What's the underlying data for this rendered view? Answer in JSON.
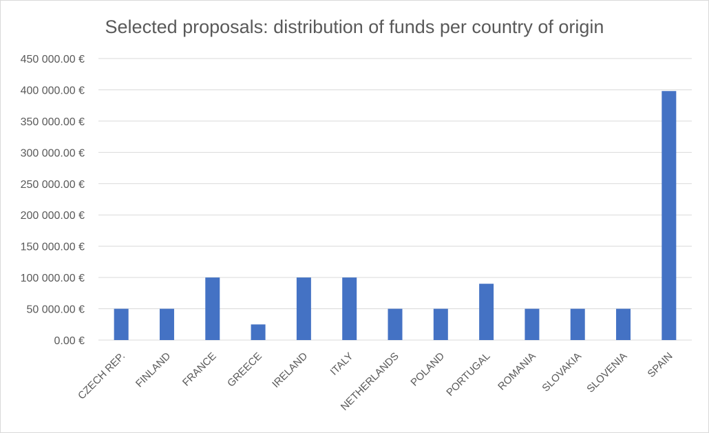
{
  "chart_data": {
    "type": "bar",
    "title": "Selected proposals: distribution of funds per country of origin",
    "xlabel": "",
    "ylabel": "",
    "categories": [
      "CZECH REP.",
      "FINLAND",
      "FRANCE",
      "GREECE",
      "IRELAND",
      "ITALY",
      "NETHERLANDS",
      "POLAND",
      "PORTUGAL",
      "ROMANIA",
      "SLOVAKIA",
      "SLOVENIA",
      "SPAIN"
    ],
    "values": [
      50000,
      50000,
      100000,
      25000,
      100000,
      100000,
      50000,
      50000,
      90000,
      50000,
      50000,
      50000,
      398000
    ],
    "ylim": [
      0,
      450000
    ],
    "yticks": [
      0,
      50000,
      100000,
      150000,
      200000,
      250000,
      300000,
      350000,
      400000,
      450000
    ],
    "ytick_labels": [
      "0.00 €",
      "50 000.00 €",
      "100 000.00 €",
      "150 000.00 €",
      "200 000.00 €",
      "250 000.00 €",
      "300 000.00 €",
      "350 000.00 €",
      "400 000.00 €",
      "450 000.00 €"
    ],
    "grid": true,
    "legend": "none",
    "bar_color": "#4472c4"
  }
}
